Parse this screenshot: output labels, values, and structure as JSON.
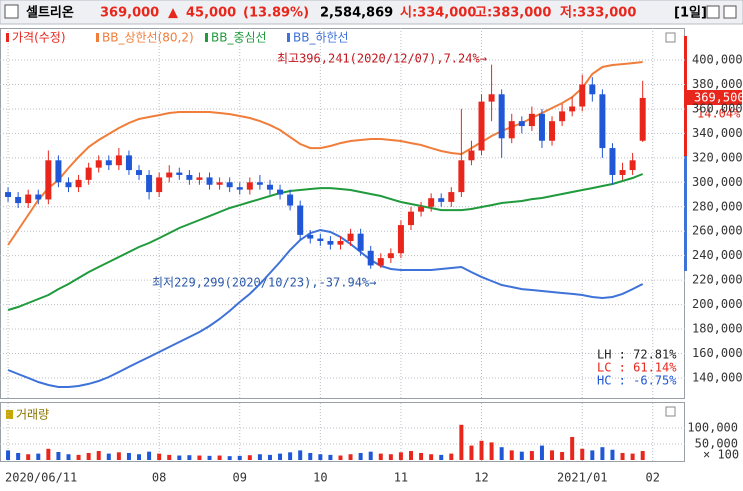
{
  "header": {
    "name": "셀트리온",
    "price": "369,000",
    "arrow": "▲",
    "change": "45,000",
    "change_pct": "(13.89%)",
    "volume": "2,584,869",
    "open": "시:334,000",
    "high": "고:383,000",
    "low": "저:333,000",
    "period": "[1일]"
  },
  "chart_data": [
    {
      "type": "candlestick",
      "name": "가격(수정)",
      "up_color": "#e8261c",
      "down_color": "#1f57d6",
      "categories": [
        null,
        null,
        null,
        null,
        null,
        null,
        null,
        null,
        null,
        null,
        null,
        null,
        null,
        null,
        null,
        null,
        null,
        null,
        null,
        null,
        null,
        null,
        null,
        null,
        null,
        null,
        null,
        null,
        null,
        null,
        null,
        null,
        null,
        null,
        null,
        null,
        null,
        null,
        null,
        null,
        null,
        null,
        null,
        null,
        null,
        null,
        null,
        null,
        null,
        null,
        null,
        null,
        null,
        null,
        null,
        null,
        null,
        null,
        null,
        null,
        null,
        null,
        null,
        null
      ],
      "open": [
        292000,
        288000,
        283000,
        290000,
        286000,
        318000,
        300000,
        296000,
        302000,
        312000,
        318000,
        314000,
        322000,
        310000,
        306000,
        292000,
        304000,
        308000,
        306000,
        302000,
        304000,
        298000,
        300000,
        296000,
        294000,
        300000,
        298000,
        294000,
        290000,
        281000,
        257000,
        254000,
        252000,
        249000,
        252000,
        258000,
        244000,
        232000,
        238000,
        242000,
        265000,
        276000,
        280000,
        287000,
        284000,
        292000,
        318000,
        326000,
        366000,
        372000,
        336000,
        350000,
        346000,
        356000,
        334000,
        350000,
        358000,
        362000,
        380000,
        372000,
        328000,
        306000,
        310000,
        334000
      ],
      "high": [
        296000,
        292000,
        294000,
        294000,
        326000,
        322000,
        304000,
        306000,
        316000,
        322000,
        322000,
        328000,
        326000,
        314000,
        310000,
        308000,
        314000,
        312000,
        310000,
        308000,
        308000,
        304000,
        304000,
        300000,
        304000,
        306000,
        302000,
        298000,
        294000,
        285000,
        261000,
        258000,
        256000,
        256000,
        262000,
        262000,
        248000,
        242000,
        246000,
        269000,
        280000,
        284000,
        291000,
        291000,
        296000,
        360000,
        334000,
        372000,
        396241,
        376000,
        356000,
        354000,
        362000,
        360000,
        354000,
        364000,
        370000,
        388000,
        386000,
        376000,
        332000,
        316000,
        324000,
        383000
      ],
      "low": [
        284000,
        279000,
        279000,
        282000,
        282000,
        296000,
        292000,
        292000,
        298000,
        308000,
        310000,
        310000,
        306000,
        302000,
        286000,
        288000,
        300000,
        302000,
        298000,
        298000,
        294000,
        294000,
        292000,
        290000,
        290000,
        294000,
        290000,
        286000,
        277000,
        253000,
        250000,
        248000,
        245000,
        245000,
        248000,
        240000,
        229299,
        230000,
        234000,
        238000,
        261000,
        272000,
        276000,
        280000,
        280000,
        288000,
        314000,
        322000,
        350000,
        320000,
        332000,
        340000,
        342000,
        328000,
        330000,
        346000,
        354000,
        358000,
        366000,
        320000,
        298000,
        302000,
        306000,
        333000
      ],
      "close": [
        288000,
        283000,
        290000,
        286000,
        318000,
        300000,
        296000,
        302000,
        312000,
        318000,
        314000,
        322000,
        310000,
        306000,
        292000,
        304000,
        308000,
        306000,
        302000,
        304000,
        298000,
        300000,
        296000,
        294000,
        300000,
        298000,
        294000,
        290000,
        281000,
        257000,
        254000,
        252000,
        249000,
        252000,
        258000,
        244000,
        232000,
        238000,
        242000,
        265000,
        276000,
        280000,
        287000,
        284000,
        292000,
        318000,
        326000,
        366000,
        372000,
        336000,
        350000,
        346000,
        356000,
        334000,
        350000,
        358000,
        362000,
        380000,
        372000,
        328000,
        306000,
        310000,
        318000,
        369000
      ],
      "series": [
        {
          "name": "BB_상한선(80,2)",
          "color": "#f07d3a",
          "values": [
            248700,
            261000,
            273300,
            285500,
            295300,
            301900,
            311700,
            320700,
            328900,
            334600,
            339500,
            344400,
            348500,
            351800,
            353400,
            355000,
            356700,
            357500,
            357500,
            357500,
            357500,
            356700,
            355800,
            354200,
            352600,
            350100,
            346800,
            342800,
            337000,
            331300,
            328000,
            328000,
            329700,
            332100,
            333800,
            334600,
            335400,
            335400,
            334600,
            333800,
            332100,
            330500,
            328000,
            325600,
            324000,
            323100,
            328000,
            332900,
            337900,
            342000,
            345200,
            348500,
            352600,
            356700,
            360800,
            364800,
            369700,
            377100,
            388600,
            394300,
            395900,
            396700,
            397500,
            398400
          ]
        },
        {
          "name": "BB_중심선",
          "color": "#1f9a3c",
          "values": [
            195600,
            198000,
            201300,
            204600,
            207800,
            212700,
            216800,
            221700,
            226600,
            230700,
            234800,
            238900,
            243000,
            247100,
            250400,
            254400,
            258500,
            262600,
            265900,
            269200,
            272400,
            275700,
            279000,
            281400,
            283900,
            286300,
            288800,
            291200,
            292900,
            293700,
            294500,
            295300,
            295300,
            294500,
            293700,
            292100,
            290400,
            288800,
            286300,
            283900,
            282300,
            280600,
            279000,
            277300,
            277300,
            277300,
            278200,
            279800,
            281400,
            283100,
            283900,
            284700,
            286300,
            287200,
            288800,
            290400,
            292100,
            293700,
            295300,
            297000,
            298600,
            301100,
            303500,
            306800
          ]
        },
        {
          "name": "BB_하한선",
          "color": "#3f72d8",
          "values": [
            146500,
            143200,
            140000,
            136700,
            134200,
            132600,
            132600,
            133400,
            135100,
            137500,
            140800,
            144900,
            149000,
            153100,
            157100,
            161200,
            165300,
            169400,
            173500,
            177600,
            182500,
            188200,
            194800,
            202100,
            208700,
            216800,
            225800,
            234800,
            244600,
            252800,
            258500,
            261000,
            259400,
            255300,
            249500,
            243000,
            236500,
            231600,
            229100,
            228300,
            228300,
            228300,
            228300,
            229100,
            229900,
            230700,
            226600,
            222600,
            219300,
            216000,
            214400,
            212700,
            211900,
            211100,
            210300,
            209500,
            208700,
            207800,
            206200,
            205400,
            206200,
            208700,
            212700,
            216800
          ]
        }
      ],
      "xlim": [
        -0.8,
        67.2
      ],
      "xticks": [
        {
          "value": 0,
          "label": "2020/06/11"
        },
        {
          "value": 15,
          "label": "08"
        },
        {
          "value": 23,
          "label": "09"
        },
        {
          "value": 31,
          "label": "10"
        },
        {
          "value": 39,
          "label": "11"
        },
        {
          "value": 47,
          "label": "12"
        },
        {
          "value": 57,
          "label": "2021/01"
        },
        {
          "value": 64,
          "label": "02"
        }
      ],
      "ylim": [
        123600,
        426200
      ],
      "yticks": [
        {
          "value": 140000,
          "label": "140,000"
        },
        {
          "value": 160000,
          "label": "160,000"
        },
        {
          "value": 180000,
          "label": "180,000"
        },
        {
          "value": 200000,
          "label": "200,000"
        },
        {
          "value": 220000,
          "label": "220,000"
        },
        {
          "value": 240000,
          "label": "240,000"
        },
        {
          "value": 260000,
          "label": "260,000"
        },
        {
          "value": 280000,
          "label": "280,000"
        },
        {
          "value": 300000,
          "label": "300,000"
        },
        {
          "value": 320000,
          "label": "320,000"
        },
        {
          "value": 340000,
          "label": "340,000"
        },
        {
          "value": 360000,
          "label": "360,000"
        },
        {
          "value": 380000,
          "label": "380,000"
        },
        {
          "value": 400000,
          "label": "400,000"
        }
      ],
      "grid": true,
      "annotations": [
        "최고396,241(2020/12/07),7.24%→",
        "최저229,299(2020/10/23),-37.94%→"
      ],
      "last_label": "369,500",
      "last_change": "14.04%",
      "stats": [
        {
          "text": "LH : 72.81%",
          "color": "#222222"
        },
        {
          "text": "LC : 61.14%",
          "color": "#e8261c"
        },
        {
          "text": "HC : -6.75%",
          "color": "#1f57d6"
        }
      ]
    },
    {
      "type": "bar",
      "title": "거래량",
      "color": "#c8a800",
      "values": [
        30000,
        22000,
        18000,
        20000,
        35000,
        25000,
        18000,
        16000,
        22000,
        28000,
        20000,
        24000,
        22000,
        18000,
        26000,
        20000,
        16000,
        14000,
        15000,
        14000,
        13000,
        14000,
        12000,
        13000,
        15000,
        18000,
        16000,
        20000,
        24000,
        30000,
        22000,
        18000,
        16000,
        14000,
        18000,
        22000,
        26000,
        20000,
        18000,
        24000,
        28000,
        22000,
        18000,
        16000,
        20000,
        110000,
        45000,
        60000,
        55000,
        40000,
        30000,
        26000,
        28000,
        45000,
        30000,
        25000,
        72000,
        35000,
        30000,
        40000,
        32000,
        22000,
        20000,
        28000
      ],
      "ylim": [
        0,
        165600
      ],
      "yticks": [
        {
          "value": 50000,
          "label": "50,000"
        },
        {
          "value": 100000,
          "label": "100,000"
        }
      ],
      "unit_label": "× 100",
      "grid": true
    }
  ]
}
